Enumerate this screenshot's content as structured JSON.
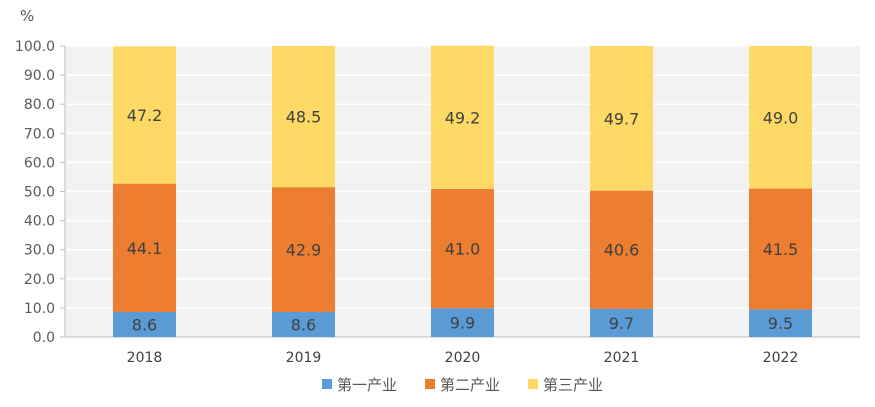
{
  "chart_data": {
    "type": "bar",
    "stacked": true,
    "ylabel": "%",
    "ylim": [
      0,
      100
    ],
    "yticks": [
      "0.0",
      "10.0",
      "20.0",
      "30.0",
      "40.0",
      "50.0",
      "60.0",
      "70.0",
      "80.0",
      "90.0",
      "100.0"
    ],
    "grid": true,
    "legend_position": "bottom",
    "categories": [
      "2018",
      "2019",
      "2020",
      "2021",
      "2022"
    ],
    "series": [
      {
        "name": "第一产业",
        "color": "#5b9bd5",
        "values": [
          8.6,
          8.6,
          9.9,
          9.7,
          9.5
        ],
        "labels": [
          "8.6",
          "8.6",
          "9.9",
          "9.7",
          "9.5"
        ]
      },
      {
        "name": "第二产业",
        "color": "#ed7d31",
        "values": [
          44.1,
          42.9,
          41.0,
          40.6,
          41.5
        ],
        "labels": [
          "44.1",
          "42.9",
          "41.0",
          "40.6",
          "41.5"
        ]
      },
      {
        "name": "第三产业",
        "color": "#ffd966",
        "values": [
          47.2,
          48.5,
          49.2,
          49.7,
          49.0
        ],
        "labels": [
          "47.2",
          "48.5",
          "49.2",
          "49.7",
          "49.0"
        ]
      }
    ]
  }
}
